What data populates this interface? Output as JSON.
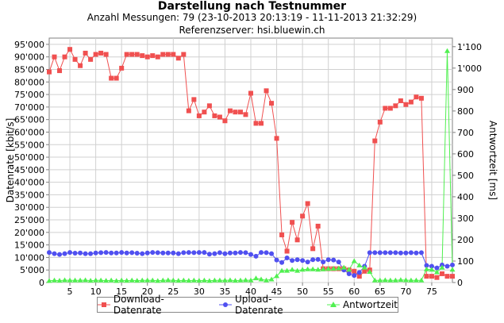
{
  "chart_data": {
    "type": "line",
    "title": "Darstellung nach Testnummer",
    "subtitle1": "Anzahl Messungen: 79 (23-10-2013 20:13:19 - 11-11-2013 21:32:29)",
    "subtitle2": "Referenzserver: hsi.bluewin.ch",
    "xlabel": "",
    "ylabel_left": "Datenrate [kbit/s]",
    "ylabel_right": "Antwortzeit [ms]",
    "xlim": [
      1,
      79
    ],
    "ylim_left": [
      0,
      97500
    ],
    "ylim_right": [
      0,
      1140
    ],
    "x_ticks": [
      "5",
      "10",
      "15",
      "20",
      "25",
      "30",
      "35",
      "40",
      "45",
      "50",
      "55",
      "60",
      "65",
      "70",
      "75"
    ],
    "y_left_ticks": [
      "0",
      "5'000",
      "10'000",
      "15'000",
      "20'000",
      "25'000",
      "30'000",
      "35'000",
      "40'000",
      "45'000",
      "50'000",
      "55'000",
      "60'000",
      "65'000",
      "70'000",
      "75'000",
      "80'000",
      "85'000",
      "90'000",
      "95'000"
    ],
    "y_right_ticks": [
      "0",
      "100",
      "200",
      "300",
      "400",
      "500",
      "600",
      "700",
      "800",
      "900",
      "1'000",
      "1'100"
    ],
    "grid": true,
    "legend_position": "bottom",
    "colors": {
      "download": "#f05050",
      "upload": "#5050f0",
      "ping": "#50f050"
    },
    "series": [
      {
        "name": "Download-Datenrate",
        "axis": "left",
        "values": [
          84000,
          90000,
          84500,
          90000,
          93000,
          89000,
          86500,
          91500,
          89000,
          91000,
          91500,
          91000,
          81500,
          81500,
          85500,
          91000,
          91000,
          91000,
          90500,
          90000,
          90500,
          90000,
          91000,
          91000,
          91000,
          89500,
          91000,
          68500,
          73000,
          66500,
          68000,
          70500,
          66500,
          66000,
          64500,
          68500,
          68000,
          68000,
          67000,
          75500,
          63500,
          63500,
          76500,
          71500,
          57500,
          19000,
          12500,
          24000,
          17000,
          26500,
          31500,
          13500,
          22500,
          5500,
          5500,
          5500,
          5500,
          5500,
          5000,
          4500,
          2500,
          4500,
          5000,
          56500,
          64000,
          69500,
          69500,
          70500,
          72500,
          71000,
          72000,
          74000,
          73500,
          2500,
          2500,
          2000,
          3500,
          2500,
          2500
        ]
      },
      {
        "name": "Upload-Datenrate",
        "axis": "left",
        "values": [
          12000,
          11500,
          11200,
          11500,
          12000,
          11700,
          11800,
          11500,
          11500,
          11800,
          11900,
          12000,
          11800,
          11800,
          12000,
          11800,
          11900,
          11700,
          11500,
          11800,
          12000,
          11900,
          11800,
          11800,
          11800,
          11500,
          11900,
          12000,
          11900,
          12000,
          12000,
          11300,
          11500,
          11900,
          11500,
          11800,
          11800,
          12000,
          11900,
          11200,
          10500,
          12000,
          11900,
          11500,
          9000,
          8000,
          9800,
          8800,
          9100,
          8800,
          8200,
          9100,
          9200,
          8200,
          9100,
          9000,
          8200,
          5000,
          3500,
          2800,
          4000,
          6500,
          11900,
          11900,
          11900,
          11900,
          11900,
          11900,
          11800,
          11800,
          11900,
          11800,
          11900,
          6800,
          6500,
          5800,
          7000,
          6500,
          7000
        ]
      },
      {
        "name": "Antwortzeit",
        "axis": "right",
        "values": [
          8,
          10,
          9,
          11,
          10,
          10,
          10,
          11,
          9,
          10,
          10,
          9,
          10,
          8,
          10,
          9,
          10,
          9,
          10,
          10,
          10,
          8,
          10,
          11,
          10,
          9,
          10,
          9,
          10,
          9,
          10,
          8,
          10,
          10,
          10,
          11,
          9,
          10,
          11,
          10,
          20,
          15,
          10,
          15,
          30,
          55,
          55,
          60,
          55,
          60,
          62,
          62,
          60,
          62,
          64,
          65,
          66,
          70,
          60,
          100,
          80,
          70,
          50,
          10,
          10,
          11,
          10,
          10,
          12,
          11,
          10,
          10,
          10,
          62,
          60,
          48,
          70,
          1080,
          60
        ]
      }
    ]
  }
}
